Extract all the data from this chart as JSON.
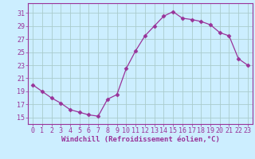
{
  "x": [
    0,
    1,
    2,
    3,
    4,
    5,
    6,
    7,
    8,
    9,
    10,
    11,
    12,
    13,
    14,
    15,
    16,
    17,
    18,
    19,
    20,
    21,
    22,
    23
  ],
  "y": [
    20.0,
    19.0,
    18.0,
    17.2,
    16.2,
    15.8,
    15.4,
    15.2,
    17.8,
    18.5,
    22.5,
    25.2,
    27.5,
    29.0,
    30.5,
    31.2,
    30.2,
    30.0,
    29.7,
    29.2,
    28.0,
    27.5,
    24.0,
    23.0
  ],
  "line_color": "#993399",
  "marker": "D",
  "marker_size": 2.5,
  "bg_color": "#cceeff",
  "grid_color": "#aacccc",
  "xlabel": "Windchill (Refroidissement éolien,°C)",
  "xlim": [
    -0.5,
    23.5
  ],
  "ylim": [
    14.0,
    32.5
  ],
  "yticks": [
    15,
    17,
    19,
    21,
    23,
    25,
    27,
    29,
    31
  ],
  "xticks": [
    0,
    1,
    2,
    3,
    4,
    5,
    6,
    7,
    8,
    9,
    10,
    11,
    12,
    13,
    14,
    15,
    16,
    17,
    18,
    19,
    20,
    21,
    22,
    23
  ],
  "xlabel_fontsize": 6.5,
  "tick_fontsize": 6.0,
  "color": "#993399"
}
